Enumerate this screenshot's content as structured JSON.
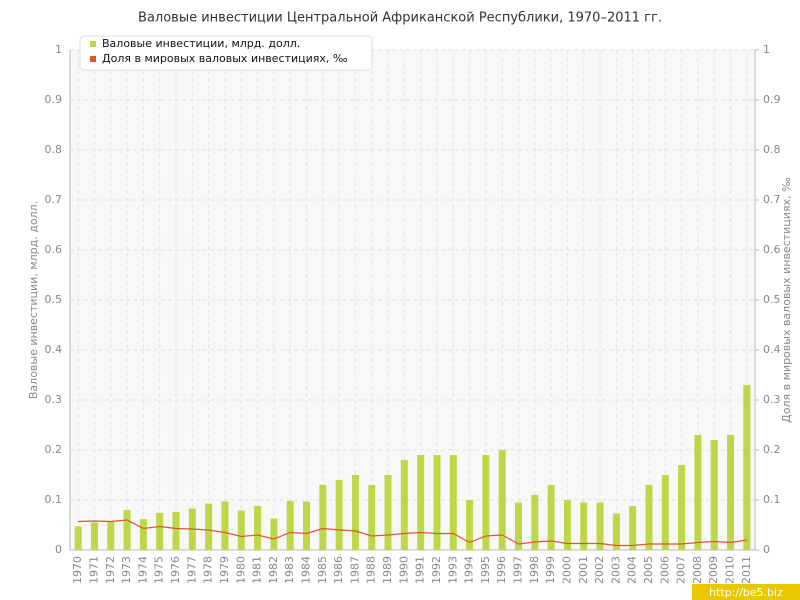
{
  "chart_data": {
    "type": "bar",
    "title": "Валовые инвестиции Центральной Африканской Республики, 1970–2011 гг.",
    "y_label": "Валовые инвестиции, млрд. долл.",
    "y2_label": "Доля в мировых валовых инвестициях, ‰",
    "watermark": "http://be5.biz",
    "categories": [
      "1970",
      "1971",
      "1972",
      "1973",
      "1974",
      "1975",
      "1976",
      "1977",
      "1978",
      "1979",
      "1980",
      "1981",
      "1982",
      "1983",
      "1984",
      "1985",
      "1986",
      "1987",
      "1988",
      "1989",
      "1990",
      "1991",
      "1992",
      "1993",
      "1994",
      "1995",
      "1996",
      "1997",
      "1998",
      "1999",
      "2000",
      "2001",
      "2002",
      "2003",
      "2004",
      "2005",
      "2006",
      "2007",
      "2008",
      "2009",
      "2010",
      "2011"
    ],
    "series": [
      {
        "name": "Валовые инвестиции, млрд. долл.",
        "color": "#bcd848",
        "type": "bar",
        "values": [
          0.047,
          0.055,
          0.057,
          0.08,
          0.062,
          0.074,
          0.076,
          0.083,
          0.093,
          0.097,
          0.079,
          0.088,
          0.063,
          0.098,
          0.097,
          0.13,
          0.14,
          0.15,
          0.13,
          0.15,
          0.18,
          0.19,
          0.19,
          0.19,
          0.1,
          0.19,
          0.2,
          0.095,
          0.11,
          0.13,
          0.1,
          0.095,
          0.095,
          0.073,
          0.088,
          0.13,
          0.15,
          0.17,
          0.23,
          0.22,
          0.23,
          0.33
        ]
      },
      {
        "name": "Доля в мировых валовых инвестициях, ‰",
        "color": "#e0552a",
        "type": "line",
        "axis": "y2",
        "values": [
          0.057,
          0.058,
          0.057,
          0.06,
          0.043,
          0.047,
          0.043,
          0.042,
          0.04,
          0.035,
          0.027,
          0.03,
          0.022,
          0.035,
          0.033,
          0.043,
          0.04,
          0.038,
          0.028,
          0.03,
          0.033,
          0.035,
          0.033,
          0.033,
          0.015,
          0.028,
          0.03,
          0.012,
          0.016,
          0.018,
          0.013,
          0.013,
          0.013,
          0.009,
          0.009,
          0.012,
          0.012,
          0.012,
          0.015,
          0.017,
          0.015,
          0.02
        ]
      }
    ],
    "ylim": [
      0,
      1
    ],
    "yticks": [
      0,
      0.1,
      0.2,
      0.3,
      0.4,
      0.5,
      0.6,
      0.7,
      0.8,
      0.9,
      1
    ],
    "y2lim": [
      0,
      1
    ],
    "y2ticks": [
      0,
      0.1,
      0.2,
      0.3,
      0.4,
      0.5,
      0.6,
      0.7,
      0.8,
      0.9,
      1
    ],
    "grid": true,
    "legend": "top-left"
  }
}
